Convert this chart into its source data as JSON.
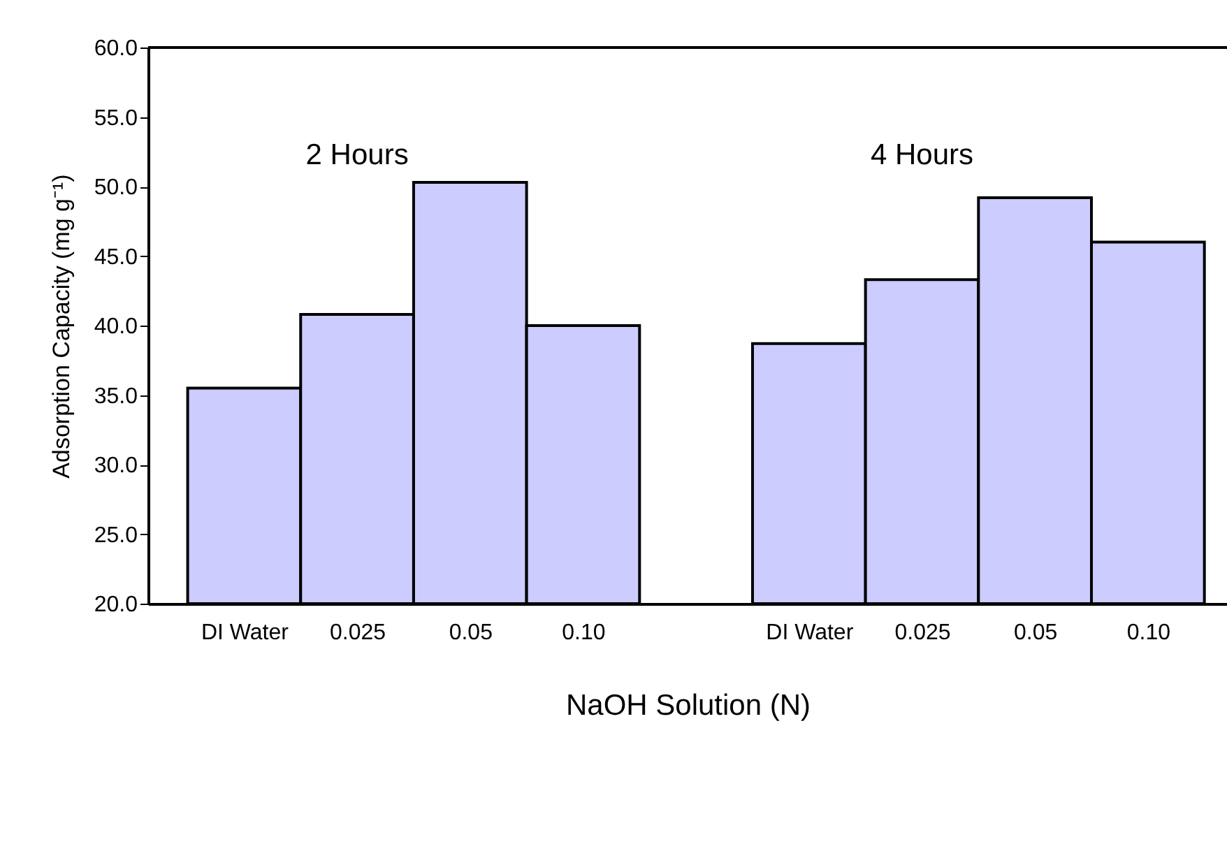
{
  "chart_data": {
    "type": "bar",
    "categories": [
      "DI Water",
      "0.025",
      "0.05",
      "0.10",
      "DI Water",
      "0.025",
      "0.05",
      "0.10"
    ],
    "values": [
      35.5,
      40.8,
      50.3,
      40.0,
      38.7,
      43.3,
      49.2,
      46.0
    ],
    "color": "#ccccff",
    "xlabel": "NaOH Solution (N)",
    "ylabel": "Adsorption Capacity (mg g⁻¹)",
    "annotations": [
      "2 Hours",
      "4 Hours"
    ],
    "ylim": [
      20,
      60
    ],
    "yticks": [
      {
        "value": 20,
        "label": "20.0"
      },
      {
        "value": 25,
        "label": "25.0"
      },
      {
        "value": 30,
        "label": "30.0"
      },
      {
        "value": 35,
        "label": "35.0"
      },
      {
        "value": 40,
        "label": "40.0"
      },
      {
        "value": 45,
        "label": "45.0"
      },
      {
        "value": 50,
        "label": "50.0"
      },
      {
        "value": 55,
        "label": "55.0"
      },
      {
        "value": 60,
        "label": "60.0"
      }
    ],
    "grid": false
  }
}
